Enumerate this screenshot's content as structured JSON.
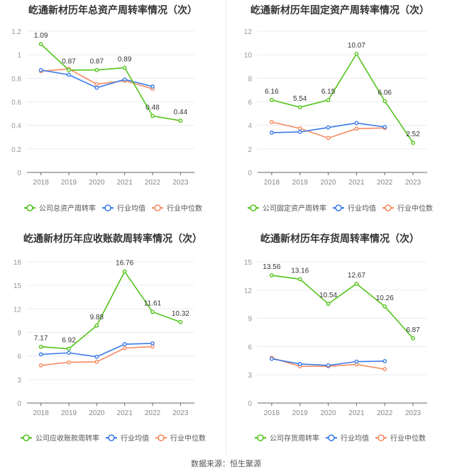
{
  "source": "数据来源：恒生聚源",
  "colors": {
    "company": "#52c41a",
    "avg": "#3b7be8",
    "median": "#f7895f"
  },
  "chart_data": [
    {
      "type": "line",
      "title": "屹通新材历年总资产周转率情况（次）",
      "categories": [
        "2018",
        "2019",
        "2020",
        "2021",
        "2022",
        "2023"
      ],
      "ylim": [
        0,
        1.2
      ],
      "yticks": [
        "0",
        "0.2",
        "0.4",
        "0.6",
        "0.8",
        "1",
        "1.2"
      ],
      "series": [
        {
          "name": "公司总资产周转率",
          "values": [
            1.09,
            0.87,
            0.87,
            0.89,
            0.48,
            0.44
          ],
          "labels": [
            "1.09",
            "0.87",
            "0.87",
            "0.89",
            "0.48",
            "0.44"
          ]
        },
        {
          "name": "行业均值",
          "values": [
            0.87,
            0.83,
            0.72,
            0.79,
            0.73,
            null
          ]
        },
        {
          "name": "行业中位数",
          "values": [
            0.86,
            0.88,
            0.75,
            0.78,
            0.71,
            null
          ]
        }
      ]
    },
    {
      "type": "line",
      "title": "屹通新材历年固定资产周转率情况（次）",
      "categories": [
        "2018",
        "2019",
        "2020",
        "2021",
        "2022",
        "2023"
      ],
      "ylim": [
        0,
        12
      ],
      "yticks": [
        "0",
        "2",
        "4",
        "6",
        "8",
        "10",
        "12"
      ],
      "series": [
        {
          "name": "公司固定资产周转率",
          "values": [
            6.16,
            5.54,
            6.15,
            10.07,
            6.06,
            2.52
          ],
          "labels": [
            "6.16",
            "5.54",
            "6.15",
            "10.07",
            "6.06",
            "2.52"
          ]
        },
        {
          "name": "行业均值",
          "values": [
            3.38,
            3.44,
            3.82,
            4.2,
            3.86,
            null
          ]
        },
        {
          "name": "行业中位数",
          "values": [
            4.28,
            3.74,
            2.92,
            3.72,
            3.78,
            null
          ]
        }
      ]
    },
    {
      "type": "line",
      "title": "屹通新材历年应收账款周转率情况（次）",
      "categories": [
        "2018",
        "2019",
        "2020",
        "2021",
        "2022",
        "2023"
      ],
      "ylim": [
        0,
        18
      ],
      "yticks": [
        "0",
        "3",
        "6",
        "9",
        "12",
        "15",
        "18"
      ],
      "series": [
        {
          "name": "公司应收账款周转率",
          "values": [
            7.17,
            6.92,
            9.88,
            16.76,
            11.61,
            10.32
          ],
          "labels": [
            "7.17",
            "6.92",
            "9.88",
            "16.76",
            "11.61",
            "10.32"
          ]
        },
        {
          "name": "行业均值",
          "values": [
            6.2,
            6.4,
            5.9,
            7.5,
            7.6,
            null
          ]
        },
        {
          "name": "行业中位数",
          "values": [
            4.8,
            5.2,
            5.25,
            7.0,
            7.2,
            null
          ]
        }
      ]
    },
    {
      "type": "line",
      "title": "屹通新材历年存货周转率情况（次）",
      "categories": [
        "2018",
        "2019",
        "2020",
        "2021",
        "2022",
        "2023"
      ],
      "ylim": [
        0,
        15
      ],
      "yticks": [
        "0",
        "3",
        "6",
        "9",
        "12",
        "15"
      ],
      "series": [
        {
          "name": "公司存货周转率",
          "values": [
            13.56,
            13.16,
            10.54,
            12.67,
            10.26,
            6.87
          ],
          "labels": [
            "13.56",
            "13.16",
            "10.54",
            "12.67",
            "10.26",
            "6.87"
          ]
        },
        {
          "name": "行业均值",
          "values": [
            4.7,
            4.15,
            4.0,
            4.4,
            4.45,
            null
          ]
        },
        {
          "name": "行业中位数",
          "values": [
            4.8,
            3.9,
            3.9,
            4.1,
            3.6,
            null
          ]
        }
      ]
    }
  ]
}
